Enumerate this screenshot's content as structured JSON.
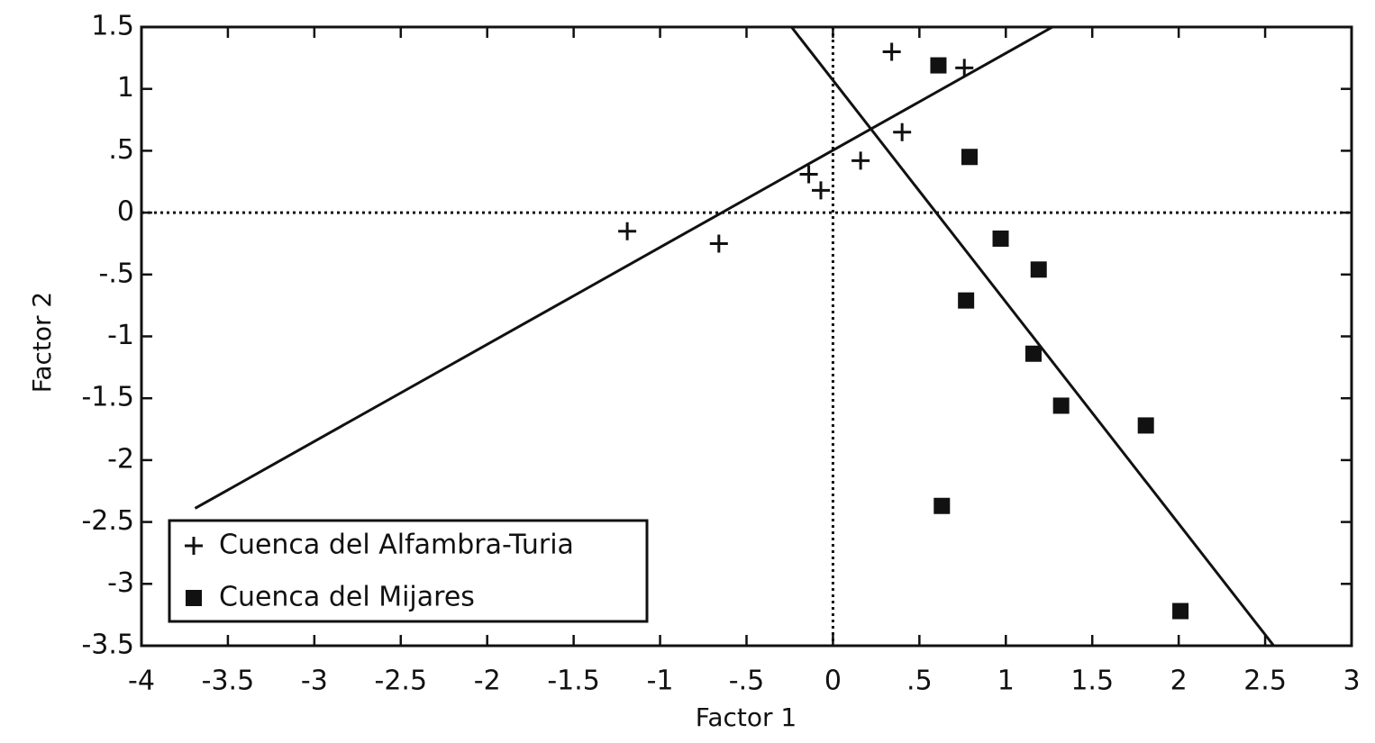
{
  "chart_data": {
    "type": "scatter",
    "x_label": "Factor 1",
    "y_label": "Factor 2",
    "xlim": [
      -4,
      3
    ],
    "ylim": [
      -3.5,
      1.5
    ],
    "xticks": [
      -4,
      -3.5,
      -3,
      -2.5,
      -2,
      -1.5,
      -1,
      {
        "value": -0.5,
        "label": "-.5"
      },
      0,
      {
        "value": 0.5,
        "label": ".5"
      },
      1,
      1.5,
      2,
      2.5,
      3
    ],
    "yticks": [
      1.5,
      1,
      {
        "value": 0.5,
        "label": ".5"
      },
      0,
      {
        "value": -0.5,
        "label": "-.5"
      },
      -1,
      -1.5,
      -2,
      -2.5,
      -3,
      -3.5
    ],
    "zero_lines": true,
    "legend": "lower left",
    "series": [
      {
        "name": "Cuenca del Alfambra-Turia",
        "marker": "plus",
        "color": "#111111",
        "x": [
          0.34,
          0.76,
          0.4,
          0.16,
          -0.14,
          -0.07,
          -1.19,
          -0.66
        ],
        "values": [
          1.3,
          1.17,
          0.65,
          0.42,
          0.31,
          0.18,
          -0.15,
          -0.25
        ]
      },
      {
        "name": "Cuenca del Mijares",
        "marker": "square",
        "color": "#111111",
        "x": [
          0.61,
          0.79,
          0.97,
          1.19,
          0.77,
          1.16,
          1.32,
          1.81,
          0.63,
          2.01
        ],
        "values": [
          1.19,
          0.45,
          -0.21,
          -0.46,
          -0.71,
          -1.14,
          -1.56,
          -1.72,
          -2.37,
          -3.22
        ]
      }
    ],
    "lines": [
      {
        "x": [
          -3.69,
          1.27
        ],
        "values": [
          -2.39,
          1.5
        ]
      },
      {
        "x": [
          -0.24,
          2.55
        ],
        "values": [
          1.5,
          -3.5
        ]
      }
    ]
  }
}
